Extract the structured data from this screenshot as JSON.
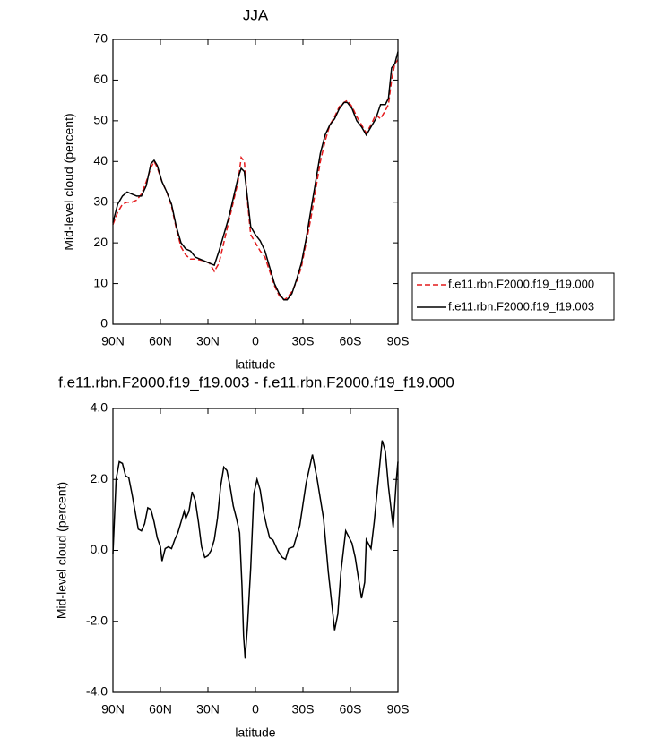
{
  "chart_data": [
    {
      "type": "line",
      "title": "JJA",
      "x_label": "latitude",
      "y_label": "Mid-level cloud (percent)",
      "x": [
        90,
        87,
        84,
        81,
        78,
        75,
        72,
        69,
        66,
        64,
        62,
        59,
        56,
        53,
        50,
        47,
        44,
        41,
        38,
        35,
        32,
        29,
        26,
        23,
        20,
        17,
        14,
        11,
        9,
        7,
        5,
        3,
        0,
        -3,
        -6,
        -9,
        -12,
        -15,
        -18,
        -20,
        -23,
        -26,
        -29,
        -32,
        -35,
        -38,
        -41,
        -44,
        -47,
        -50,
        -53,
        -56,
        -58,
        -61,
        -64,
        -67,
        -70,
        -73,
        -76,
        -79,
        -82,
        -84,
        -86,
        -88,
        -90
      ],
      "series": [
        {
          "name": "f.e11.rbn.F2000.f19_f19.000",
          "color": "#e41a1c",
          "line_style": "dashed",
          "values": [
            24.5,
            27.5,
            29.5,
            30,
            30,
            30.5,
            32,
            35,
            38.5,
            40,
            38.5,
            35,
            32.5,
            29,
            23.5,
            19,
            17,
            16,
            16,
            15.8,
            15.5,
            15,
            13,
            15,
            20,
            25,
            30,
            35,
            41,
            40,
            30,
            22,
            20,
            18,
            16.5,
            13,
            9.5,
            7,
            6,
            6.5,
            8,
            10.5,
            14,
            20,
            26,
            33,
            40,
            45,
            49,
            51,
            53.5,
            54.5,
            55,
            53.5,
            51,
            49,
            47,
            49,
            51.5,
            50.5,
            52.5,
            54,
            60,
            64,
            65
          ]
        },
        {
          "name": "f.e11.rbn.F2000.f19_f19.003",
          "color": "#000000",
          "line_style": "solid",
          "values": [
            25,
            29.5,
            31.5,
            32.5,
            32,
            31.5,
            31.5,
            34,
            39.5,
            40.3,
            39,
            35,
            32.5,
            29.5,
            24,
            20,
            18.5,
            18,
            16.5,
            16,
            15.5,
            15,
            14.5,
            18,
            22,
            26,
            31,
            36,
            38.3,
            37.5,
            31,
            24,
            22,
            20.5,
            18,
            14,
            10,
            7.5,
            6,
            6,
            7.5,
            11,
            15,
            21,
            28,
            35,
            42,
            46.5,
            49,
            50.5,
            53,
            54.5,
            54.5,
            53,
            50,
            48.5,
            46.5,
            48.5,
            50.5,
            54,
            54,
            55.5,
            63,
            64,
            67
          ]
        }
      ],
      "xlim": [
        90,
        -90
      ],
      "xticks": [
        {
          "value": 90,
          "label": "90N"
        },
        {
          "value": 60,
          "label": "60N"
        },
        {
          "value": 30,
          "label": "30N"
        },
        0,
        {
          "value": -30,
          "label": "30S"
        },
        {
          "value": -60,
          "label": "60S"
        },
        {
          "value": -90,
          "label": "90S"
        }
      ],
      "ylim": [
        0,
        70
      ],
      "yticks": [
        0,
        10,
        20,
        30,
        40,
        50,
        60,
        70
      ],
      "legend": "right"
    },
    {
      "type": "line",
      "title": "f.e11.rbn.F2000.f19_f19.003 - f.e11.rbn.F2000.f19_f19.000",
      "x_label": "latitude",
      "y_label": "Mid-level cloud (percent)",
      "x": [
        90,
        88,
        86,
        84,
        82,
        80,
        78,
        76,
        74,
        72,
        70,
        68,
        66,
        64,
        62,
        60,
        59,
        57,
        55,
        53,
        51,
        49,
        47,
        45,
        44,
        42,
        40,
        38,
        36,
        34,
        32,
        30,
        28,
        26,
        24,
        22,
        20,
        18,
        16,
        14,
        12,
        10,
        8.5,
        7.5,
        6.5,
        5,
        3,
        1,
        -1,
        -3,
        -5,
        -7,
        -9,
        -11,
        -14,
        -17,
        -19,
        -21,
        -24,
        -28,
        -32,
        -36,
        -39,
        -43,
        -46,
        -50,
        -52,
        -54,
        -57,
        -61,
        -63,
        -67,
        -69,
        -70,
        -73,
        -75,
        -80,
        -82,
        -84,
        -87,
        -89,
        -90
      ],
      "series": [
        {
          "color": "#000000",
          "line_style": "solid",
          "values": [
            -0.1,
            2.0,
            2.5,
            2.45,
            2.1,
            2.05,
            1.6,
            1.1,
            0.6,
            0.55,
            0.75,
            1.2,
            1.15,
            0.8,
            0.35,
            0.1,
            -0.3,
            0.05,
            0.1,
            0.05,
            0.3,
            0.5,
            0.8,
            1.1,
            0.9,
            1.1,
            1.65,
            1.4,
            0.8,
            0.1,
            -0.2,
            -0.15,
            0.0,
            0.3,
            0.9,
            1.8,
            2.35,
            2.25,
            1.8,
            1.25,
            0.9,
            0.5,
            -1.0,
            -2.4,
            -3.05,
            -2.1,
            -0.5,
            1.6,
            2.0,
            1.7,
            1.1,
            0.7,
            0.35,
            0.3,
            0.0,
            -0.2,
            -0.25,
            0.05,
            0.1,
            0.7,
            1.9,
            2.7,
            2.0,
            0.9,
            -0.6,
            -2.25,
            -1.8,
            -0.6,
            0.55,
            0.2,
            -0.2,
            -1.35,
            -0.9,
            0.3,
            0.05,
            0.8,
            3.1,
            2.8,
            1.8,
            0.65,
            2.0,
            2.5
          ]
        }
      ],
      "xlim": [
        90,
        -90
      ],
      "xticks": [
        {
          "value": 90,
          "label": "90N"
        },
        {
          "value": 60,
          "label": "60N"
        },
        {
          "value": 30,
          "label": "30N"
        },
        0,
        {
          "value": -30,
          "label": "30S"
        },
        {
          "value": -60,
          "label": "60S"
        },
        {
          "value": -90,
          "label": "90S"
        }
      ],
      "ylim": [
        -4,
        4
      ],
      "yticks": [
        {
          "value": -4,
          "label": "-4.0"
        },
        {
          "value": -2,
          "label": "-2.0"
        },
        {
          "value": 0,
          "label": "0.0"
        },
        {
          "value": 2,
          "label": "2.0"
        },
        {
          "value": 4,
          "label": "4.0"
        }
      ]
    }
  ]
}
